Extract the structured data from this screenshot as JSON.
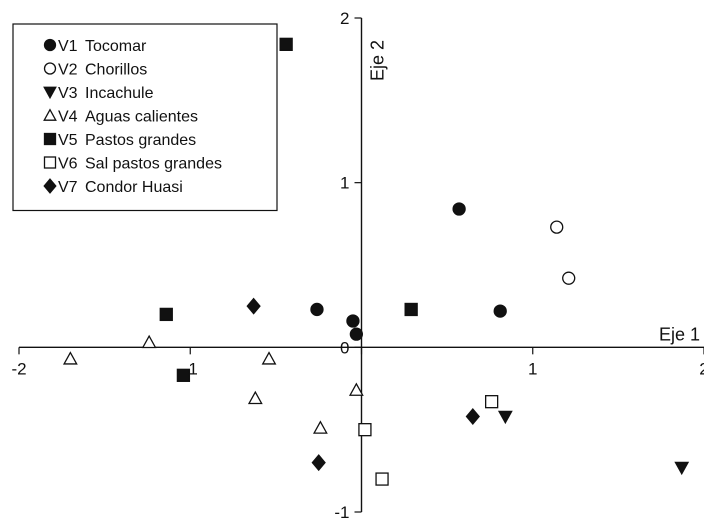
{
  "chart_data": {
    "type": "scatter",
    "xlabel": "Eje 1",
    "ylabel": "Eje 2",
    "xlim": [
      -2,
      2
    ],
    "ylim": [
      -1,
      2
    ],
    "x_ticks": [
      {
        "value": -2,
        "label": "-2"
      },
      {
        "value": -1,
        "label": "-1"
      },
      {
        "value": 0,
        "label": "0"
      },
      {
        "value": 1,
        "label": "1"
      },
      {
        "value": 2,
        "label": "2"
      }
    ],
    "y_ticks": [
      {
        "value": -1,
        "label": "-1"
      },
      {
        "value": 0,
        "label": "0"
      },
      {
        "value": 1,
        "label": "1"
      },
      {
        "value": 2,
        "label": "2"
      }
    ],
    "grid": false,
    "legend_position": "top-left",
    "series": [
      {
        "code": "V1",
        "name": "Tocomar",
        "marker": "circle-filled",
        "points": [
          [
            0.57,
            0.84
          ],
          [
            0.81,
            0.22
          ],
          [
            -0.26,
            0.23
          ],
          [
            -0.05,
            0.16
          ],
          [
            -0.03,
            0.08
          ]
        ]
      },
      {
        "code": "V2",
        "name": "Chorillos",
        "marker": "circle-open",
        "points": [
          [
            1.14,
            0.73
          ],
          [
            1.21,
            0.42
          ]
        ]
      },
      {
        "code": "V3",
        "name": "Incachule",
        "marker": "triangle-down-filled",
        "points": [
          [
            0.84,
            -0.42
          ],
          [
            1.87,
            -0.73
          ]
        ]
      },
      {
        "code": "V4",
        "name": "Aguas calientes",
        "marker": "triangle-up-open",
        "points": [
          [
            -1.7,
            -0.07
          ],
          [
            -1.24,
            0.03
          ],
          [
            -0.54,
            -0.07
          ],
          [
            -0.62,
            -0.31
          ],
          [
            -0.24,
            -0.49
          ],
          [
            -0.03,
            -0.26
          ]
        ]
      },
      {
        "code": "V5",
        "name": "Pastos grandes",
        "marker": "square-filled",
        "points": [
          [
            -0.44,
            1.84
          ],
          [
            -1.14,
            0.2
          ],
          [
            -1.04,
            -0.17
          ],
          [
            0.29,
            0.23
          ]
        ]
      },
      {
        "code": "V6",
        "name": "Sal pastos grandes",
        "marker": "square-open",
        "points": [
          [
            0.76,
            -0.33
          ],
          [
            0.02,
            -0.5
          ],
          [
            0.12,
            -0.8
          ]
        ]
      },
      {
        "code": "V7",
        "name": "Condor Huasi",
        "marker": "diamond-filled",
        "points": [
          [
            -0.63,
            0.25
          ],
          [
            0.65,
            -0.42
          ],
          [
            -0.25,
            -0.7
          ]
        ]
      }
    ]
  }
}
